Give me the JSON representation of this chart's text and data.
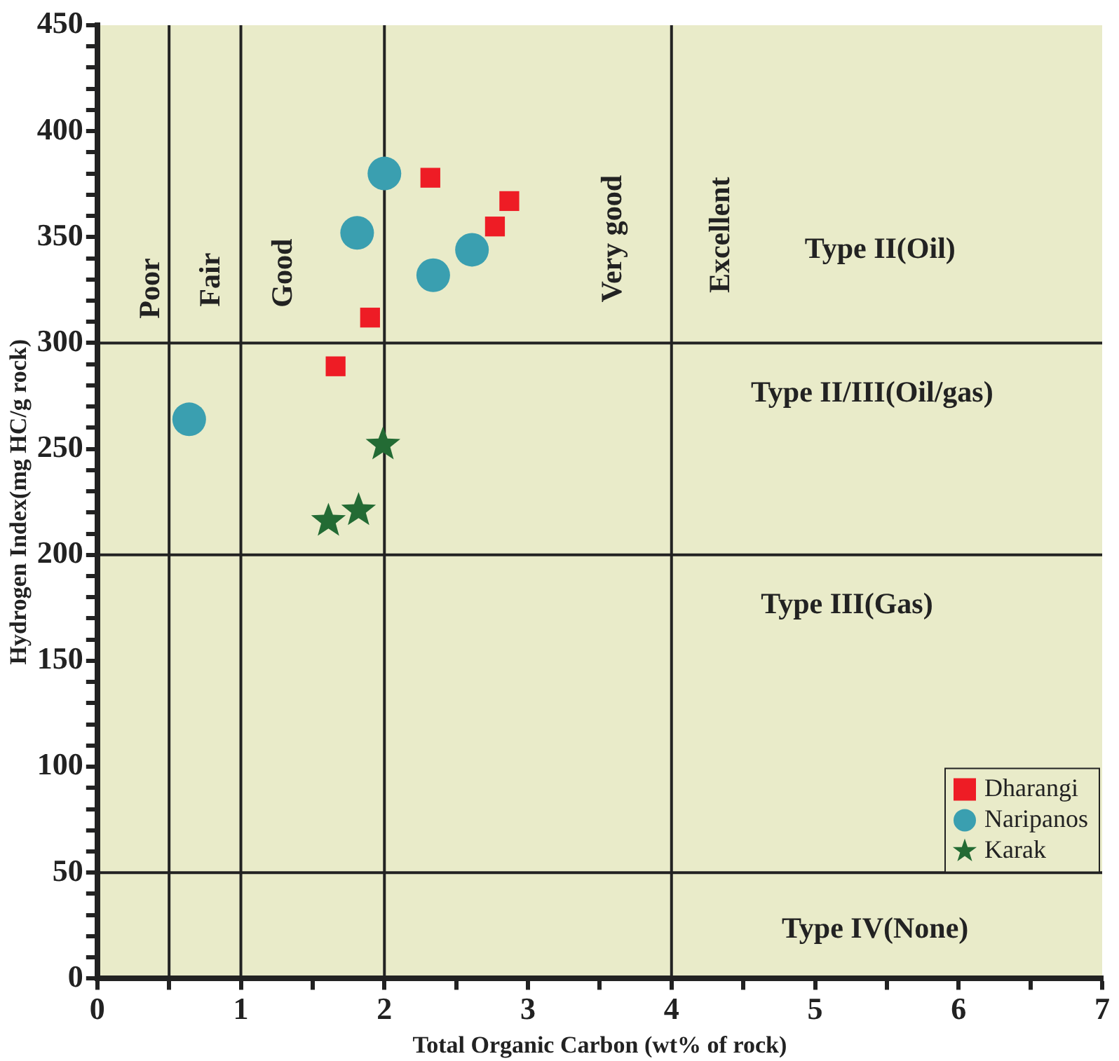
{
  "chart_data": {
    "type": "scatter",
    "xlabel": "Total Organic Carbon (wt% of rock)",
    "ylabel": "Hydrogen Index(mg HC/g rock)",
    "xlim": [
      0,
      7
    ],
    "ylim": [
      0,
      450
    ],
    "xticks": [
      0,
      {
        "value": 0.5,
        "label": null
      },
      1,
      {
        "value": 1.5,
        "label": null
      },
      2,
      {
        "value": 2.5,
        "label": null
      },
      3,
      {
        "value": 3.5,
        "label": null
      },
      4,
      {
        "value": 4.5,
        "label": null
      },
      5,
      {
        "value": 5.5,
        "label": null
      },
      6,
      {
        "value": 6.5,
        "label": null
      },
      7
    ],
    "yticks": [
      0,
      {
        "value": 10,
        "label": null
      },
      {
        "value": 20,
        "label": null
      },
      {
        "value": 30,
        "label": null
      },
      {
        "value": 40,
        "label": null
      },
      50,
      {
        "value": 60,
        "label": null
      },
      {
        "value": 70,
        "label": null
      },
      {
        "value": 80,
        "label": null
      },
      {
        "value": 90,
        "label": null
      },
      100,
      {
        "value": 110,
        "label": null
      },
      {
        "value": 120,
        "label": null
      },
      {
        "value": 130,
        "label": null
      },
      {
        "value": 140,
        "label": null
      },
      150,
      {
        "value": 160,
        "label": null
      },
      {
        "value": 170,
        "label": null
      },
      {
        "value": 180,
        "label": null
      },
      {
        "value": 190,
        "label": null
      },
      200,
      {
        "value": 210,
        "label": null
      },
      {
        "value": 220,
        "label": null
      },
      {
        "value": 230,
        "label": null
      },
      {
        "value": 240,
        "label": null
      },
      250,
      {
        "value": 260,
        "label": null
      },
      {
        "value": 270,
        "label": null
      },
      {
        "value": 280,
        "label": null
      },
      {
        "value": 290,
        "label": null
      },
      300,
      {
        "value": 310,
        "label": null
      },
      {
        "value": 320,
        "label": null
      },
      {
        "value": 330,
        "label": null
      },
      {
        "value": 340,
        "label": null
      },
      350,
      {
        "value": 360,
        "label": null
      },
      {
        "value": 370,
        "label": null
      },
      {
        "value": 380,
        "label": null
      },
      {
        "value": 390,
        "label": null
      },
      400,
      {
        "value": 410,
        "label": null
      },
      {
        "value": 420,
        "label": null
      },
      {
        "value": 430,
        "label": null
      },
      {
        "value": 440,
        "label": null
      },
      450
    ],
    "grid": false,
    "legend": "bottom right",
    "series": [
      {
        "name": "Dharangi",
        "color": "#ee1c25",
        "marker": "square",
        "x": [
          1.66,
          1.9,
          2.32,
          2.77,
          2.87
        ],
        "values": [
          289,
          312,
          378,
          355,
          367
        ]
      },
      {
        "name": "Naripanos",
        "color": "#3a9fb0",
        "marker": "circle",
        "x": [
          0.64,
          1.81,
          2.0,
          2.34,
          2.61
        ],
        "values": [
          264,
          352,
          380,
          332,
          344
        ]
      },
      {
        "name": "Karak",
        "color": "#236b34",
        "marker": "star",
        "x": [
          1.61,
          1.82,
          1.99
        ],
        "values": [
          216,
          221,
          252
        ]
      }
    ],
    "ref_lines": [
      {
        "axis": "x",
        "value": 0.5
      },
      {
        "axis": "x",
        "value": 1
      },
      {
        "axis": "x",
        "value": 2
      },
      {
        "axis": "x",
        "value": 4
      },
      {
        "axis": "y",
        "value": 300
      },
      {
        "axis": "y",
        "value": 200
      },
      {
        "axis": "y",
        "value": 50
      }
    ],
    "annotations": [
      "Poor",
      "Fair",
      "Good",
      "Very good",
      "Excellent",
      "Type II(Oil)",
      "Type II/III(Oil/gas)",
      "Type III(Gas)",
      "Type IV(None)"
    ]
  }
}
